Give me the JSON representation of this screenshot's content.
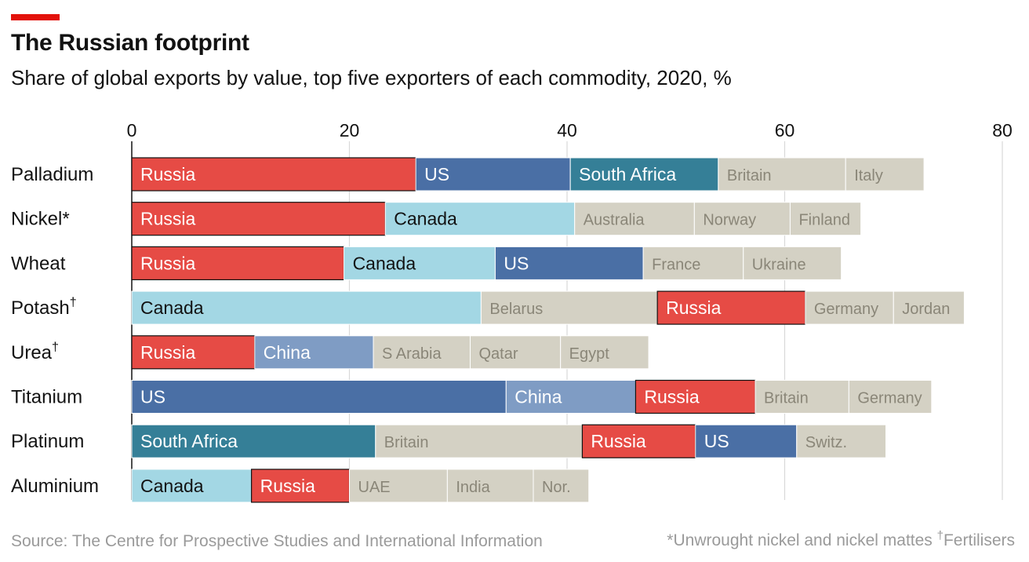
{
  "header": {
    "title": "The Russian footprint",
    "subtitle": "Share of global exports by value, top five exporters of each commodity, 2020, %"
  },
  "footer": {
    "source": "Source: The Centre for Prospective Studies and International Information",
    "note_nickel": "*Unwrought nickel and nickel mattes ",
    "dagger": "†",
    "note_fertilisers": "Fertilisers"
  },
  "colors": {
    "Russia": "#e64b45",
    "US": "#4a6fa5",
    "South Africa": "#357f97",
    "Canada": "#a3d7e4",
    "China": "#7f9cc4",
    "other": "#d4d1c4"
  },
  "chart_data": {
    "type": "bar",
    "orientation": "horizontal",
    "stacked": true,
    "xlim": [
      0,
      80
    ],
    "xticks": [
      0,
      20,
      40,
      60,
      80
    ],
    "grid": true,
    "categories": [
      {
        "label": "Palladium",
        "sup": "",
        "segments": [
          {
            "name": "Russia",
            "value": 26.1
          },
          {
            "name": "US",
            "value": 14.2
          },
          {
            "name": "South Africa",
            "value": 13.6
          },
          {
            "name": "Britain",
            "value": 11.7
          },
          {
            "name": "Italy",
            "value": 7.2
          }
        ]
      },
      {
        "label": "Nickel*",
        "sup": "",
        "segments": [
          {
            "name": "Russia",
            "value": 23.3
          },
          {
            "name": "Canada",
            "value": 17.4
          },
          {
            "name": "Australia",
            "value": 11.0
          },
          {
            "name": "Norway",
            "value": 8.8
          },
          {
            "name": "Finland",
            "value": 6.5
          }
        ]
      },
      {
        "label": "Wheat",
        "sup": "",
        "segments": [
          {
            "name": "Russia",
            "value": 19.5
          },
          {
            "name": "Canada",
            "value": 13.9
          },
          {
            "name": "US",
            "value": 13.6
          },
          {
            "name": "France",
            "value": 9.2
          },
          {
            "name": "Ukraine",
            "value": 9.0
          }
        ]
      },
      {
        "label": "Potash",
        "sup": "†",
        "segments": [
          {
            "name": "Canada",
            "value": 32.1
          },
          {
            "name": "Belarus",
            "value": 16.2
          },
          {
            "name": "Russia",
            "value": 13.6
          },
          {
            "name": "Germany",
            "value": 8.1
          },
          {
            "name": "Jordan",
            "value": 6.5
          }
        ]
      },
      {
        "label": "Urea",
        "sup": "†",
        "segments": [
          {
            "name": "Russia",
            "value": 11.3
          },
          {
            "name": "China",
            "value": 10.9
          },
          {
            "name": "S Arabia",
            "value": 8.9
          },
          {
            "name": "Qatar",
            "value": 8.3
          },
          {
            "name": "Egypt",
            "value": 8.1
          }
        ]
      },
      {
        "label": "Titanium",
        "sup": "",
        "segments": [
          {
            "name": "US",
            "value": 34.4
          },
          {
            "name": "China",
            "value": 11.9
          },
          {
            "name": "Russia",
            "value": 11.0
          },
          {
            "name": "Britain",
            "value": 8.6
          },
          {
            "name": "Germany",
            "value": 7.6
          }
        ]
      },
      {
        "label": "Platinum",
        "sup": "",
        "segments": [
          {
            "name": "South Africa",
            "value": 22.4
          },
          {
            "name": "Britain",
            "value": 19.0
          },
          {
            "name": "Russia",
            "value": 10.4
          },
          {
            "name": "US",
            "value": 9.3
          },
          {
            "name": "Switz.",
            "value": 8.2
          }
        ]
      },
      {
        "label": "Aluminium",
        "sup": "",
        "segments": [
          {
            "name": "Canada",
            "value": 11.0
          },
          {
            "name": "Russia",
            "value": 9.0
          },
          {
            "name": "UAE",
            "value": 9.0
          },
          {
            "name": "India",
            "value": 7.9
          },
          {
            "name": "Nor.",
            "value": 5.1
          }
        ]
      }
    ]
  }
}
